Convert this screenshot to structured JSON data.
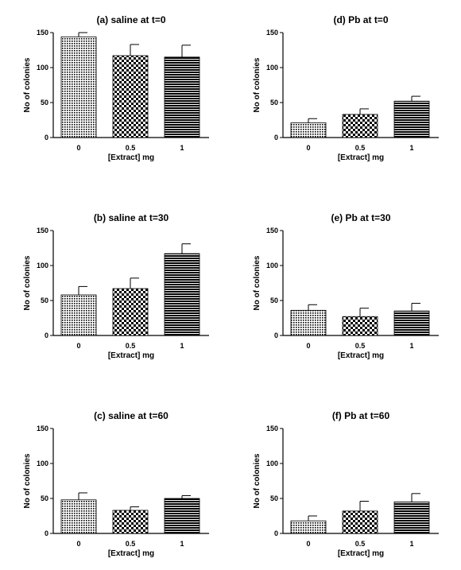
{
  "chart_data": [
    {
      "type": "bar",
      "title": "(a) saline at t=0",
      "xlabel": "[Extract] mg",
      "ylabel": "No of colonies",
      "categories": [
        "0",
        "0.5",
        "1"
      ],
      "values": [
        144,
        117,
        115
      ],
      "errors": [
        6,
        16,
        17
      ],
      "ylim": [
        0,
        150
      ],
      "yticks": [
        "0",
        "50",
        "100",
        "150"
      ]
    },
    {
      "type": "bar",
      "title": "(d) Pb at t=0",
      "xlabel": "[Extract] mg",
      "ylabel": "No of colonies",
      "categories": [
        "0",
        "0.5",
        "1"
      ],
      "values": [
        21,
        33,
        52
      ],
      "errors": [
        6,
        8,
        7
      ],
      "ylim": [
        0,
        150
      ],
      "yticks": [
        "0",
        "50",
        "100",
        "150"
      ]
    },
    {
      "type": "bar",
      "title": "(b) saline at t=30",
      "xlabel": "[Extract] mg",
      "ylabel": "No of colonies",
      "categories": [
        "0",
        "0.5",
        "1"
      ],
      "values": [
        58,
        67,
        117
      ],
      "errors": [
        12,
        15,
        14
      ],
      "ylim": [
        0,
        150
      ],
      "yticks": [
        "0",
        "50",
        "100",
        "150"
      ]
    },
    {
      "type": "bar",
      "title": "(e) Pb at t=30",
      "xlabel": "[Extract] mg",
      "ylabel": "No of colonies",
      "categories": [
        "0",
        "0.5",
        "1"
      ],
      "values": [
        36,
        27,
        35
      ],
      "errors": [
        8,
        12,
        11
      ],
      "ylim": [
        0,
        150
      ],
      "yticks": [
        "0",
        "50",
        "100",
        "150"
      ]
    },
    {
      "type": "bar",
      "title": "(c) saline at t=60",
      "xlabel": "[Extract] mg",
      "ylabel": "No of colonies",
      "categories": [
        "0",
        "0.5",
        "1"
      ],
      "values": [
        48,
        33,
        50
      ],
      "errors": [
        10,
        5,
        4
      ],
      "ylim": [
        0,
        150
      ],
      "yticks": [
        "0",
        "50",
        "100",
        "150"
      ]
    },
    {
      "type": "bar",
      "title": "(f) Pb at t=60",
      "xlabel": "[Extract] mg",
      "ylabel": "No of colonies",
      "categories": [
        "0",
        "0.5",
        "1"
      ],
      "values": [
        18,
        32,
        45
      ],
      "errors": [
        7,
        14,
        12
      ],
      "ylim": [
        0,
        150
      ],
      "yticks": [
        "0",
        "50",
        "100",
        "150"
      ]
    }
  ]
}
